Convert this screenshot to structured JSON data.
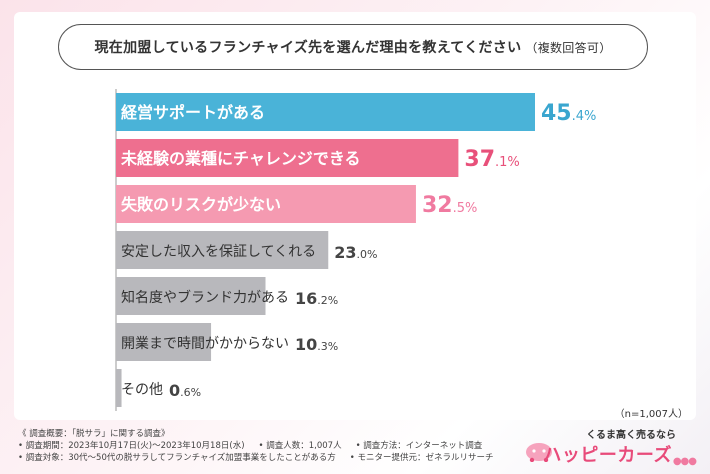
{
  "title": "現在加盟しているフランチャイズ先を選んだ理由を教えてください",
  "title_note": "（複数回答可）",
  "chart_data": {
    "type": "bar",
    "orientation": "horizontal",
    "categories": [
      "経営サポートがある",
      "未経験の業種にチャレンジできる",
      "失敗のリスクが少ない",
      "安定した収入を保証してくれる",
      "知名度やブランド力がある",
      "開業まで時間がかからない",
      "その他"
    ],
    "values": [
      45.4,
      37.1,
      32.5,
      23.0,
      16.2,
      10.3,
      0.6
    ],
    "value_labels": [
      "45.4%",
      "37.1%",
      "32.5%",
      "23.0%",
      "16.2%",
      "10.3%",
      "0.6%"
    ],
    "colors": [
      "#4ab3d8",
      "#ee6f8f",
      "#f59ab1",
      "#b8b8bc",
      "#b8b8bc",
      "#b8b8bc",
      "#b8b8bc"
    ],
    "value_colors": [
      "#3aa6cf",
      "#e8507a",
      "#f07aa0",
      "#444444",
      "#444444",
      "#444444",
      "#444444"
    ],
    "label_colors": [
      "#ffffff",
      "#ffffff",
      "#ffffff",
      "#333333",
      "#333333",
      "#333333",
      "#333333"
    ],
    "xlim": [
      0,
      60
    ],
    "n_label": "（n=1,007人）"
  },
  "footer": {
    "summary": "《 調査概要：「脱サラ」に関する調査》",
    "period": "• 調査期間：2023年10月17日(火)〜2023年10月18日(水)",
    "count": "• 調査人数：1,007人",
    "method": "• 調査方法：インターネット調査",
    "target": "• 調査対象：30代〜50代の脱サラしてフランチャイズ加盟事業をしたことがある方",
    "provider": "• モニター提供元：ゼネラルリサーチ"
  },
  "logo": {
    "tagline": "くるま高く売るなら",
    "brand": "ハッピーカーズ",
    "dots": "●●●"
  }
}
